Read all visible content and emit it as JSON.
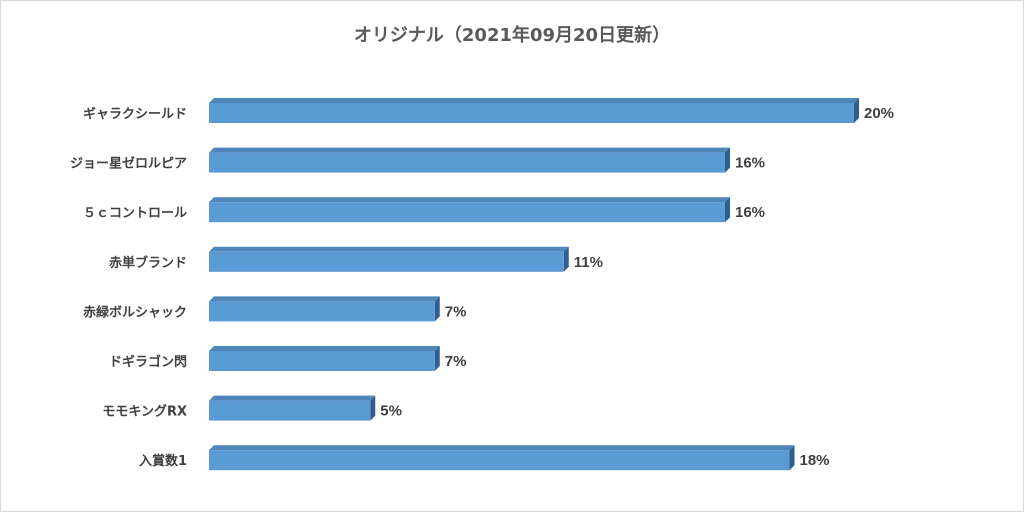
{
  "chart_data": {
    "type": "bar",
    "orientation": "horizontal",
    "title": "オリジナル（2021年09月20日更新）",
    "categories": [
      "ギャラクシールド",
      "ジョー星ゼロルピア",
      "５ｃコントロール",
      "赤単ブランド",
      "赤緑ボルシャック",
      "ドギラゴン閃",
      "モモキングRX",
      "入賞数1"
    ],
    "values": [
      20,
      16,
      16,
      11,
      7,
      7,
      5,
      18
    ],
    "value_labels": [
      "20%",
      "16%",
      "16%",
      "11%",
      "7%",
      "7%",
      "5%",
      "18%"
    ],
    "xlim": [
      0,
      20
    ],
    "xlabel": "",
    "ylabel": "",
    "grid": false,
    "legend": "none",
    "colors": {
      "bar_front": "#5b9bd5",
      "bar_top": "#4f86ba",
      "bar_side": "#2e5f8f",
      "text": "#404040",
      "title": "#595959"
    }
  }
}
